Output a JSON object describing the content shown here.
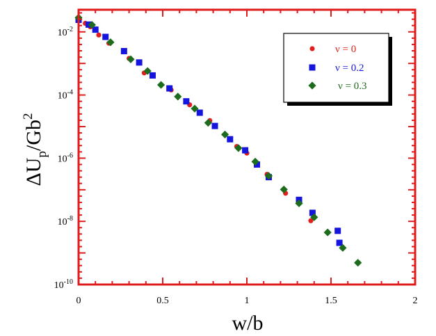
{
  "chart_data": {
    "type": "scatter",
    "title": "",
    "xlabel": "w/b",
    "ylabel": {
      "base": "ΔU",
      "sub": "p",
      "mid": "/Gb",
      "sup": "2"
    },
    "xlim": [
      0,
      2
    ],
    "ylim_log10": [
      -10,
      -1.3
    ],
    "yscale": "log",
    "x_ticks": [
      {
        "value": 0,
        "label": "0"
      },
      {
        "value": 0.5,
        "label": "0.5"
      },
      {
        "value": 1,
        "label": "1"
      },
      {
        "value": 1.5,
        "label": "1.5"
      },
      {
        "value": 2,
        "label": "2"
      }
    ],
    "y_ticks": [
      {
        "exp": -2,
        "base": "10",
        "sup": "-2"
      },
      {
        "exp": -4,
        "base": "10",
        "sup": "-4"
      },
      {
        "exp": -6,
        "base": "10",
        "sup": "-6"
      },
      {
        "exp": -8,
        "base": "10",
        "sup": "-8"
      },
      {
        "exp": -10,
        "base": "10",
        "sup": "-10"
      }
    ],
    "legend_position": "top-right",
    "series": [
      {
        "name": "ν = 0",
        "marker": "circle",
        "color": "#e0201c",
        "x": [
          0.0,
          0.04,
          0.07,
          0.12,
          0.18,
          0.3,
          0.39,
          0.55,
          0.66,
          0.78,
          0.87,
          0.94,
          1.0,
          1.12,
          1.23,
          1.38
        ],
        "log10y": [
          -1.62,
          -1.73,
          -1.84,
          -2.1,
          -2.36,
          -2.84,
          -3.3,
          -3.84,
          -4.31,
          -4.81,
          -5.25,
          -5.63,
          -5.84,
          -6.51,
          -7.11,
          -7.98
        ]
      },
      {
        "name": "ν = 0.2",
        "marker": "square",
        "color": "#1515dd",
        "x": [
          0.0,
          0.06,
          0.1,
          0.16,
          0.27,
          0.36,
          0.44,
          0.54,
          0.64,
          0.72,
          0.81,
          0.9,
          0.99,
          1.06,
          1.13,
          1.31,
          1.39,
          1.54,
          1.55
        ],
        "log10y": [
          -1.62,
          -1.77,
          -1.93,
          -2.16,
          -2.61,
          -2.97,
          -3.38,
          -3.79,
          -4.2,
          -4.56,
          -4.98,
          -5.4,
          -5.75,
          -6.2,
          -6.6,
          -7.32,
          -7.73,
          -8.3,
          -8.68
        ]
      },
      {
        "name": "ν = 0.3",
        "marker": "diamond",
        "color": "#1d6b1d",
        "x": [
          0.0,
          0.08,
          0.19,
          0.31,
          0.41,
          0.49,
          0.59,
          0.69,
          0.77,
          0.87,
          0.95,
          1.05,
          1.13,
          1.22,
          1.31,
          1.4,
          1.48,
          1.57,
          1.66
        ],
        "log10y": [
          -1.55,
          -1.78,
          -2.33,
          -2.87,
          -3.24,
          -3.68,
          -4.05,
          -4.43,
          -4.88,
          -5.25,
          -5.68,
          -6.11,
          -6.56,
          -6.99,
          -7.43,
          -7.87,
          -8.35,
          -8.84,
          -9.31
        ]
      }
    ]
  },
  "colors": {
    "frame": "#e01b1b",
    "axis_text": "#000000"
  }
}
